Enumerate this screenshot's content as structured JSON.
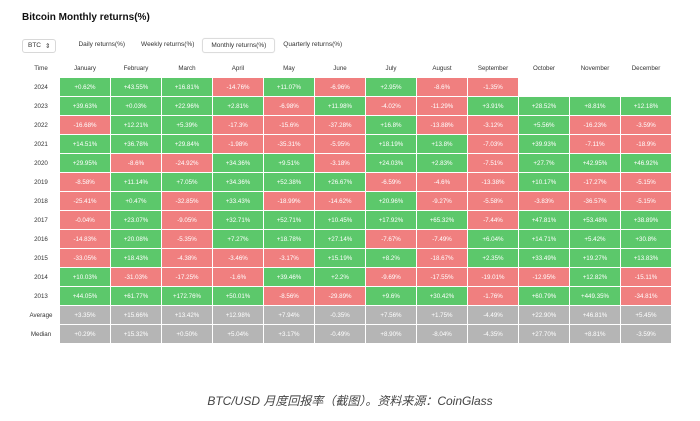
{
  "title": "Bitcoin Monthly returns(%)",
  "coin_select": {
    "value": "BTC",
    "icon": "chevron-updown-icon"
  },
  "tabs": [
    "Daily returns(%)",
    "Weekly returns(%)",
    "Monthly returns(%)",
    "Quarterly returns(%)"
  ],
  "active_tab": 2,
  "table": {
    "columns": [
      "Time",
      "January",
      "February",
      "March",
      "April",
      "May",
      "June",
      "July",
      "August",
      "September",
      "October",
      "November",
      "December"
    ],
    "rows": [
      {
        "label": "2024",
        "cells": [
          "+0.62%",
          "+43.55%",
          "+16.81%",
          "-14.76%",
          "+11.07%",
          "-6.96%",
          "+2.95%",
          "-8.6%",
          "-1.35%",
          "",
          "",
          ""
        ]
      },
      {
        "label": "2023",
        "cells": [
          "+39.63%",
          "+0.03%",
          "+22.96%",
          "+2.81%",
          "-6.98%",
          "+11.98%",
          "-4.02%",
          "-11.29%",
          "+3.91%",
          "+28.52%",
          "+8.81%",
          "+12.18%"
        ]
      },
      {
        "label": "2022",
        "cells": [
          "-16.68%",
          "+12.21%",
          "+5.39%",
          "-17.3%",
          "-15.6%",
          "-37.28%",
          "+16.8%",
          "-13.88%",
          "-3.12%",
          "+5.56%",
          "-16.23%",
          "-3.59%"
        ]
      },
      {
        "label": "2021",
        "cells": [
          "+14.51%",
          "+36.78%",
          "+29.84%",
          "-1.98%",
          "-35.31%",
          "-5.95%",
          "+18.19%",
          "+13.8%",
          "-7.03%",
          "+39.93%",
          "-7.11%",
          "-18.9%"
        ]
      },
      {
        "label": "2020",
        "cells": [
          "+29.95%",
          "-8.6%",
          "-24.92%",
          "+34.36%",
          "+9.51%",
          "-3.18%",
          "+24.03%",
          "+2.83%",
          "-7.51%",
          "+27.7%",
          "+42.95%",
          "+46.92%"
        ]
      },
      {
        "label": "2019",
        "cells": [
          "-8.58%",
          "+11.14%",
          "+7.05%",
          "+34.36%",
          "+52.38%",
          "+26.67%",
          "-6.59%",
          "-4.6%",
          "-13.38%",
          "+10.17%",
          "-17.27%",
          "-5.15%"
        ]
      },
      {
        "label": "2018",
        "cells": [
          "-25.41%",
          "+0.47%",
          "-32.85%",
          "+33.43%",
          "-18.99%",
          "-14.62%",
          "+20.96%",
          "-9.27%",
          "-5.58%",
          "-3.83%",
          "-36.57%",
          "-5.15%"
        ]
      },
      {
        "label": "2017",
        "cells": [
          "-0.04%",
          "+23.07%",
          "-9.05%",
          "+32.71%",
          "+52.71%",
          "+10.45%",
          "+17.92%",
          "+65.32%",
          "-7.44%",
          "+47.81%",
          "+53.48%",
          "+38.89%"
        ]
      },
      {
        "label": "2016",
        "cells": [
          "-14.83%",
          "+20.08%",
          "-5.35%",
          "+7.27%",
          "+18.78%",
          "+27.14%",
          "-7.67%",
          "-7.49%",
          "+6.04%",
          "+14.71%",
          "+5.42%",
          "+30.8%"
        ]
      },
      {
        "label": "2015",
        "cells": [
          "-33.05%",
          "+18.43%",
          "-4.38%",
          "-3.46%",
          "-3.17%",
          "+15.19%",
          "+8.2%",
          "-18.67%",
          "+2.35%",
          "+33.49%",
          "+19.27%",
          "+13.83%"
        ]
      },
      {
        "label": "2014",
        "cells": [
          "+10.03%",
          "-31.03%",
          "-17.25%",
          "-1.6%",
          "+39.46%",
          "+2.2%",
          "-9.69%",
          "-17.55%",
          "-19.01%",
          "-12.95%",
          "+12.82%",
          "-15.11%"
        ]
      },
      {
        "label": "2013",
        "cells": [
          "+44.05%",
          "+61.77%",
          "+172.76%",
          "+50.01%",
          "-8.56%",
          "-29.89%",
          "+9.6%",
          "+30.42%",
          "-1.76%",
          "+60.79%",
          "+449.35%",
          "-34.81%"
        ]
      }
    ],
    "summary_rows": [
      {
        "label": "Average",
        "cells": [
          "+3.35%",
          "+15.66%",
          "+13.42%",
          "+12.98%",
          "+7.94%",
          "-0.35%",
          "+7.56%",
          "+1.75%",
          "-4.49%",
          "+22.90%",
          "+46.81%",
          "+5.45%"
        ]
      },
      {
        "label": "Median",
        "cells": [
          "+0.29%",
          "+15.32%",
          "+0.50%",
          "+5.04%",
          "+3.17%",
          "-0.49%",
          "+8.90%",
          "-8.04%",
          "-4.35%",
          "+27.70%",
          "+8.81%",
          "-3.59%"
        ]
      }
    ]
  },
  "caption": "BTC/USD 月度回报率（截图）。资料来源：CoinGlass",
  "colors": {
    "positive": "#5cc86b",
    "negative": "#f07f7f",
    "summary": "#b5b5b5"
  }
}
